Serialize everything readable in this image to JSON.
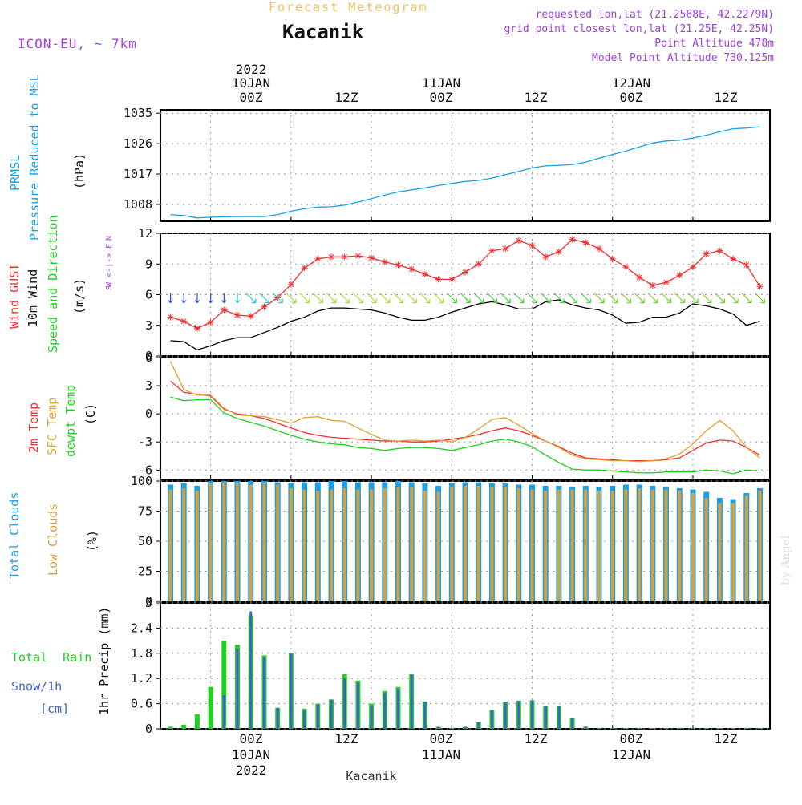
{
  "header": {
    "forecast_title": "Forecast Meteogram",
    "location": "Kacanik",
    "model": "ICON-EU, ~ 7km",
    "requested": "requested lon,lat (21.2568E, 42.2279N)",
    "grid_point": "grid point closest lon,lat (21.25E, 42.25N)",
    "point_altitude": "Point Altitude 478m",
    "model_altitude": "Model Point Altitude 730.125m",
    "footer_label": "Kacanik",
    "credit": "by Angel"
  },
  "colors": {
    "title_orange": "#f0c060",
    "info_purple": "#a040e0",
    "pressure": "#1aa0e8",
    "gust": "#f03030",
    "wind_line": "#000000",
    "temp2m": "#f03030",
    "sfc_temp": "#e0a030",
    "dewpt": "#20d020",
    "total_clouds": "#1aa0e8",
    "low_clouds": "#d4a040",
    "rain": "#20d020",
    "snow": "#4060d0"
  },
  "time_axis": {
    "top_date": [
      "2022",
      "10JAN",
      "11JAN",
      "12JAN"
    ],
    "tick_labels": [
      "00Z",
      "12Z",
      "00Z",
      "12Z",
      "00Z",
      "12Z"
    ],
    "bottom_dates": [
      "10JAN",
      "11JAN",
      "12JAN"
    ],
    "bottom_year": "2022"
  },
  "chart_data": [
    {
      "type": "line",
      "panel": "pressure",
      "ylabel_lines": [
        "PRMSL",
        "Pressure Reduced to MSL"
      ],
      "unit": "(hPa)",
      "yticks": [
        1008,
        1017,
        1026,
        1035
      ],
      "ylim": [
        1003,
        1036
      ],
      "x": [
        -6,
        -4,
        -2,
        0,
        2,
        4,
        6,
        8,
        10,
        12,
        14,
        16,
        18,
        20,
        22,
        24,
        26,
        28,
        30,
        32,
        34,
        36,
        38,
        40,
        42,
        44,
        46,
        48,
        50,
        52,
        54,
        56,
        58,
        60,
        62,
        64,
        66,
        68,
        70,
        72,
        74,
        76,
        78,
        80,
        82
      ],
      "series": [
        {
          "values": [
            1005.0,
            1004.7,
            1004.0,
            1004.2,
            1004.3,
            1004.4,
            1004.4,
            1004.4,
            1005.0,
            1006.0,
            1006.7,
            1007.2,
            1007.3,
            1007.8,
            1008.7,
            1009.7,
            1010.8,
            1011.7,
            1012.3,
            1012.9,
            1013.6,
            1014.2,
            1014.8,
            1015.1,
            1015.8,
            1016.8,
            1017.8,
            1018.8,
            1019.4,
            1019.6,
            1019.8,
            1020.5,
            1021.7,
            1022.8,
            1023.8,
            1025.0,
            1026.2,
            1026.8,
            1027.0,
            1027.7,
            1028.5,
            1029.5,
            1030.4,
            1030.6,
            1031.0
          ]
        }
      ]
    },
    {
      "type": "line",
      "panel": "wind",
      "ylabel_lines": [
        "Wind GUST",
        "10m Wind",
        "Speed and Direction"
      ],
      "unit": "(m/s)",
      "compass": [
        "N",
        "W <-|-> E",
        "S"
      ],
      "yticks": [
        0,
        3,
        6,
        9,
        12
      ],
      "ylim": [
        0,
        12
      ],
      "x": [
        -6,
        -4,
        -2,
        0,
        2,
        4,
        6,
        8,
        10,
        12,
        14,
        16,
        18,
        20,
        22,
        24,
        26,
        28,
        30,
        32,
        34,
        36,
        38,
        40,
        42,
        44,
        46,
        48,
        50,
        52,
        54,
        56,
        58,
        60,
        62,
        64,
        66,
        68,
        70,
        72,
        74,
        76,
        78,
        80,
        82
      ],
      "series": [
        {
          "name": "Wind GUST",
          "values": [
            3.8,
            3.4,
            2.7,
            3.3,
            4.5,
            4.0,
            3.9,
            4.8,
            5.7,
            7.0,
            8.6,
            9.5,
            9.7,
            9.7,
            9.8,
            9.6,
            9.2,
            8.9,
            8.5,
            8.0,
            7.5,
            7.5,
            8.2,
            9.0,
            10.3,
            10.5,
            11.3,
            10.8,
            9.7,
            10.2,
            11.4,
            11.1,
            10.5,
            9.5,
            8.7,
            7.7,
            6.9,
            7.2,
            7.9,
            8.7,
            10.0,
            10.3,
            9.5,
            8.9,
            6.8
          ]
        },
        {
          "name": "10m Wind",
          "values": [
            1.5,
            1.4,
            0.6,
            1.0,
            1.5,
            1.8,
            1.8,
            2.3,
            2.8,
            3.4,
            3.8,
            4.4,
            4.7,
            4.7,
            4.6,
            4.5,
            4.2,
            3.8,
            3.5,
            3.5,
            3.8,
            4.3,
            4.7,
            5.1,
            5.3,
            5.0,
            4.6,
            4.6,
            5.3,
            5.5,
            5.0,
            4.7,
            4.5,
            4.0,
            3.2,
            3.3,
            3.8,
            3.8,
            4.2,
            5.1,
            4.9,
            4.6,
            4.1,
            3.0,
            3.4
          ]
        }
      ]
    },
    {
      "type": "line",
      "panel": "temperature",
      "ylabel_lines": [
        "2m Temp",
        "SFC Temp",
        "dewpt Temp"
      ],
      "unit": "(C)",
      "yticks": [
        -6,
        -3,
        0,
        3,
        6
      ],
      "ylim": [
        -7,
        6
      ],
      "x": [
        -6,
        -4,
        -2,
        0,
        2,
        4,
        6,
        8,
        10,
        12,
        14,
        16,
        18,
        20,
        22,
        24,
        26,
        28,
        30,
        32,
        34,
        36,
        38,
        40,
        42,
        44,
        46,
        48,
        50,
        52,
        54,
        56,
        58,
        60,
        62,
        64,
        66,
        68,
        70,
        72,
        74,
        76,
        78,
        80,
        82
      ],
      "series": [
        {
          "name": "2m Temp",
          "values": [
            3.5,
            2.3,
            2.1,
            1.9,
            0.5,
            0.0,
            -0.2,
            -0.5,
            -1.0,
            -1.5,
            -2.0,
            -2.3,
            -2.5,
            -2.6,
            -2.7,
            -2.8,
            -2.9,
            -2.9,
            -3.0,
            -3.0,
            -2.9,
            -2.7,
            -2.5,
            -2.2,
            -1.8,
            -1.5,
            -1.8,
            -2.3,
            -2.9,
            -3.5,
            -4.2,
            -4.7,
            -4.8,
            -4.9,
            -5.0,
            -5.0,
            -5.0,
            -4.9,
            -4.7,
            -3.9,
            -3.1,
            -2.8,
            -2.9,
            -3.6,
            -4.4
          ]
        },
        {
          "name": "SFC Temp",
          "values": [
            5.6,
            2.6,
            2.0,
            2.0,
            0.6,
            -0.1,
            -0.2,
            -0.3,
            -0.6,
            -1.0,
            -0.4,
            -0.3,
            -0.7,
            -0.8,
            -1.5,
            -2.2,
            -2.8,
            -2.9,
            -2.8,
            -2.9,
            -2.8,
            -3.0,
            -2.5,
            -1.6,
            -0.6,
            -0.4,
            -1.2,
            -2.1,
            -2.9,
            -3.6,
            -4.4,
            -4.8,
            -4.9,
            -5.0,
            -5.0,
            -5.1,
            -5.0,
            -4.8,
            -4.3,
            -3.2,
            -1.8,
            -0.7,
            -1.8,
            -3.6,
            -4.7
          ]
        },
        {
          "name": "dewpt Temp",
          "values": [
            1.8,
            1.4,
            1.5,
            1.5,
            0.1,
            -0.5,
            -0.9,
            -1.3,
            -1.8,
            -2.3,
            -2.7,
            -3.0,
            -3.2,
            -3.3,
            -3.6,
            -3.7,
            -3.9,
            -3.7,
            -3.6,
            -3.6,
            -3.7,
            -3.9,
            -3.6,
            -3.3,
            -2.9,
            -2.7,
            -3.0,
            -3.5,
            -4.4,
            -5.2,
            -5.9,
            -6.0,
            -6.0,
            -6.1,
            -6.2,
            -6.3,
            -6.3,
            -6.2,
            -6.2,
            -6.2,
            -6.0,
            -6.1,
            -6.4,
            -6.0,
            -6.1
          ]
        }
      ]
    },
    {
      "type": "bar",
      "panel": "clouds",
      "ylabel_lines": [
        "Total Clouds",
        "Low Clouds"
      ],
      "unit": "(%)",
      "yticks": [
        0,
        25,
        50,
        75,
        100
      ],
      "ylim": [
        0,
        100
      ],
      "x": [
        -6,
        -4,
        -2,
        0,
        2,
        4,
        6,
        8,
        10,
        12,
        14,
        16,
        18,
        20,
        22,
        24,
        26,
        28,
        30,
        32,
        34,
        36,
        38,
        40,
        42,
        44,
        46,
        48,
        50,
        52,
        54,
        56,
        58,
        60,
        62,
        64,
        66,
        68,
        70,
        72,
        74,
        76,
        78,
        80,
        82
      ],
      "series": [
        {
          "name": "Total Clouds",
          "values": [
            97,
            98,
            96,
            100,
            100,
            100,
            100,
            100,
            99,
            98,
            99,
            99,
            100,
            100,
            99,
            99,
            99,
            100,
            99,
            98,
            96,
            98,
            99,
            99,
            98,
            98,
            97,
            97,
            96,
            96,
            95,
            96,
            95,
            96,
            97,
            97,
            96,
            95,
            94,
            93,
            91,
            86,
            85,
            90,
            94
          ]
        },
        {
          "name": "Low Clouds",
          "values": [
            93,
            94,
            92,
            98,
            99,
            98,
            97,
            98,
            97,
            94,
            93,
            92,
            93,
            94,
            93,
            93,
            94,
            95,
            95,
            92,
            91,
            95,
            96,
            96,
            95,
            95,
            94,
            93,
            92,
            93,
            93,
            93,
            92,
            92,
            93,
            94,
            93,
            93,
            92,
            90,
            86,
            82,
            82,
            88,
            92
          ]
        }
      ]
    },
    {
      "type": "bar",
      "panel": "precipitation",
      "ylabel_lines": [
        "Total Rain",
        "Snow/1h",
        "[cm]"
      ],
      "axis_title": "1hr Precip (mm)",
      "yticks": [
        0,
        0.6,
        1.2,
        1.8,
        2.4,
        3
      ],
      "ylim": [
        0,
        3
      ],
      "x": [
        -6,
        -4,
        -2,
        0,
        2,
        4,
        6,
        8,
        10,
        12,
        14,
        16,
        18,
        20,
        22,
        24,
        26,
        28,
        30,
        32,
        34,
        36,
        38,
        40,
        42,
        44,
        46,
        48,
        50,
        52,
        54,
        56,
        58,
        60,
        62,
        64,
        66,
        68,
        70,
        72,
        74,
        76,
        78,
        80,
        82
      ],
      "series": [
        {
          "name": "Total Rain",
          "values": [
            0.05,
            0.1,
            0.35,
            1.0,
            2.1,
            2.0,
            2.7,
            1.75,
            0.5,
            1.8,
            0.48,
            0.6,
            0.7,
            1.3,
            1.15,
            0.6,
            0.9,
            1.0,
            1.3,
            0.65,
            0.05,
            0.02,
            0.05,
            0.15,
            0.45,
            0.65,
            0.67,
            0.68,
            0.55,
            0.55,
            0.25,
            0.05,
            0.02,
            0.02,
            0.02,
            0.02,
            0.02,
            0.02,
            0.02,
            0.02,
            0.02,
            0.02,
            0.02,
            0.02,
            0.02
          ]
        },
        {
          "name": "Snow/1h",
          "values": [
            0,
            0,
            0,
            0,
            0.8,
            1.9,
            2.8,
            1.7,
            0.5,
            1.78,
            0.45,
            0.58,
            0.7,
            1.2,
            1.1,
            0.55,
            0.85,
            0.95,
            1.28,
            0.63,
            0.05,
            0.02,
            0.05,
            0.15,
            0.45,
            0.65,
            0.67,
            0.68,
            0.55,
            0.55,
            0.25,
            0.05,
            0.02,
            0.02,
            0.02,
            0.02,
            0.02,
            0.02,
            0.02,
            0.02,
            0.02,
            0.02,
            0.02,
            0.02,
            0.02
          ]
        }
      ]
    }
  ]
}
